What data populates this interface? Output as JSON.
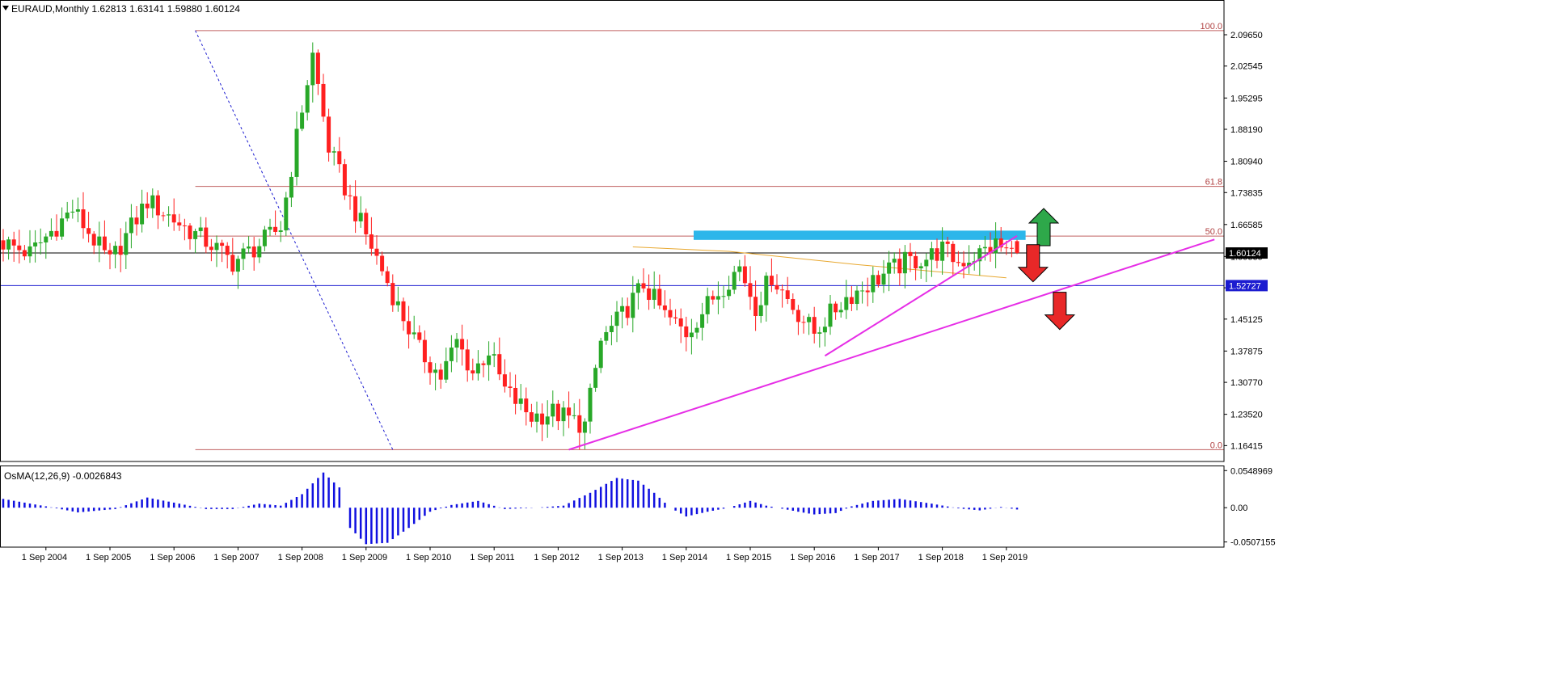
{
  "header": {
    "title": "EURAUD,Monthly  1.62813 1.63141 1.59880 1.60124",
    "osma_label": "OsMA(12,26,9) -0.0026843"
  },
  "colors": {
    "bull": "#28a828",
    "bear": "#ff2020",
    "fib_line": "#c06060",
    "fib_text": "#b04040",
    "trend": "#e62ee6",
    "resistance_box": "#2cb6ea",
    "support_line": "#1c1cd0",
    "price_line": "#000000",
    "ma": "#e8a830",
    "osma": "#1010e0",
    "axis": "#000000",
    "arrow_up": "#2ea84a",
    "arrow_down": "#e82828"
  },
  "chart_data": [
    {
      "type": "candlestick",
      "title": "EURAUD,Monthly  1.62813 1.63141 1.59880 1.60124",
      "ylim": [
        1.13,
        2.135
      ],
      "y_ticks": [
        "2.09650",
        "2.02545",
        "1.95295",
        "1.88190",
        "1.80940",
        "1.73835",
        "1.66585",
        "1.59335",
        "1.52230",
        "1.45125",
        "1.37875",
        "1.30770",
        "1.23520",
        "1.16415"
      ],
      "x_ticks": [
        "1 Sep 2004",
        "1 Sep 2005",
        "1 Sep 2006",
        "1 Sep 2007",
        "1 Sep 2008",
        "1 Sep 2009",
        "1 Sep 2010",
        "1 Sep 2011",
        "1 Sep 2012",
        "1 Sep 2013",
        "1 Sep 2014",
        "1 Sep 2015",
        "1 Sep 2016",
        "1 Sep 2017",
        "1 Sep 2018",
        "1 Sep 2019"
      ],
      "x_start": "2004-01",
      "anchors": [
        [
          "2004-01",
          1.63
        ],
        [
          "2004-07",
          1.6
        ],
        [
          "2005-03",
          1.7
        ],
        [
          "2005-10",
          1.58
        ],
        [
          "2006-05",
          1.72
        ],
        [
          "2006-12",
          1.66
        ],
        [
          "2007-05",
          1.62
        ],
        [
          "2007-09",
          1.58
        ],
        [
          "2008-02",
          1.62
        ],
        [
          "2008-06",
          1.66
        ],
        [
          "2008-10",
          1.93
        ],
        [
          "2008-12",
          2.05
        ],
        [
          "2009-03",
          1.84
        ],
        [
          "2009-07",
          1.72
        ],
        [
          "2009-12",
          1.59
        ],
        [
          "2010-04",
          1.48
        ],
        [
          "2010-08",
          1.38
        ],
        [
          "2010-12",
          1.32
        ],
        [
          "2011-03",
          1.4
        ],
        [
          "2011-06",
          1.33
        ],
        [
          "2011-09",
          1.38
        ],
        [
          "2011-12",
          1.29
        ],
        [
          "2012-05",
          1.23
        ],
        [
          "2012-09",
          1.24
        ],
        [
          "2013-03",
          1.21
        ],
        [
          "2013-06",
          1.4
        ],
        [
          "2013-10",
          1.46
        ],
        [
          "2014-02",
          1.53
        ],
        [
          "2014-06",
          1.46
        ],
        [
          "2014-10",
          1.42
        ],
        [
          "2015-03",
          1.5
        ],
        [
          "2015-08",
          1.57
        ],
        [
          "2015-11",
          1.48
        ],
        [
          "2016-02",
          1.55
        ],
        [
          "2016-06",
          1.48
        ],
        [
          "2016-10",
          1.42
        ],
        [
          "2016-12",
          1.45
        ],
        [
          "2017-04",
          1.5
        ],
        [
          "2017-08",
          1.53
        ],
        [
          "2017-12",
          1.56
        ],
        [
          "2018-03",
          1.58
        ],
        [
          "2018-07",
          1.59
        ],
        [
          "2018-10",
          1.61
        ],
        [
          "2019-01",
          1.58
        ],
        [
          "2019-05",
          1.6
        ],
        [
          "2019-08",
          1.62
        ],
        [
          "2019-11",
          1.6
        ]
      ],
      "last": {
        "open": 1.62813,
        "high": 1.63141,
        "low": 1.5988,
        "close": 1.60124
      },
      "fibonacci": [
        {
          "label": "100.0",
          "value": 2.106
        },
        {
          "label": "61.8",
          "value": 1.7525
        },
        {
          "label": "50.0",
          "value": 1.6395
        },
        {
          "label": "0.0",
          "value": 1.155
        }
      ],
      "fib_start": "2007-01",
      "fib_end": "2022-09",
      "price_labels": [
        {
          "label": "1.60124",
          "value": 1.60124
        },
        {
          "label": "1.52727",
          "value": 1.52727
        }
      ],
      "resistance_zone": {
        "from": "2014-11",
        "to": "2019-12",
        "low": 1.631,
        "high": 1.652
      },
      "trendlines": [
        {
          "from": [
            "2012-11",
            1.155
          ],
          "to": [
            "2022-12",
            1.632
          ]
        },
        {
          "from": [
            "2016-11",
            1.368
          ],
          "to": [
            "2019-11",
            1.64
          ]
        }
      ],
      "dotted_line": {
        "from": [
          "2007-01",
          2.106
        ],
        "to": [
          "2010-02",
          1.155
        ]
      },
      "ma_line": [
        [
          "2013-11",
          1.615
        ],
        [
          "2015-05",
          1.605
        ],
        [
          "2017-05",
          1.575
        ],
        [
          "2019-09",
          1.545
        ]
      ],
      "arrows": [
        {
          "dir": "up",
          "at": "2020-04",
          "value": 1.66
        },
        {
          "dir": "down",
          "at": "2020-02",
          "value": 1.578
        },
        {
          "dir": "down",
          "at": "2020-07",
          "value": 1.47
        }
      ]
    },
    {
      "type": "bar",
      "name": "OsMA(12,26,9) -0.0026843",
      "y_ticks": [
        "0.0548969",
        "0.00",
        "-0.0507155"
      ],
      "ylim": [
        -0.056,
        0.06
      ],
      "anchors": [
        [
          "2004-01",
          0.013
        ],
        [
          "2004-09",
          0.002
        ],
        [
          "2005-03",
          -0.007
        ],
        [
          "2005-10",
          -0.002
        ],
        [
          "2006-04",
          0.015
        ],
        [
          "2006-10",
          0.006
        ],
        [
          "2007-03",
          -0.002
        ],
        [
          "2007-08",
          -0.002
        ],
        [
          "2008-01",
          0.006
        ],
        [
          "2008-05",
          0.003
        ],
        [
          "2008-09",
          0.02
        ],
        [
          "2009-01",
          0.052
        ],
        [
          "2009-04",
          0.03
        ],
        [
          "2009-06",
          -0.03
        ],
        [
          "2009-09",
          -0.054
        ],
        [
          "2010-01",
          -0.052
        ],
        [
          "2010-05",
          -0.03
        ],
        [
          "2010-09",
          -0.006
        ],
        [
          "2011-01",
          0.004
        ],
        [
          "2011-06",
          0.01
        ],
        [
          "2011-11",
          -0.002
        ],
        [
          "2012-05",
          0.0
        ],
        [
          "2012-10",
          0.003
        ],
        [
          "2013-03",
          0.022
        ],
        [
          "2013-08",
          0.044
        ],
        [
          "2013-12",
          0.04
        ],
        [
          "2014-03",
          0.022
        ],
        [
          "2014-06",
          0.0
        ],
        [
          "2014-09",
          -0.013
        ],
        [
          "2015-01",
          -0.006
        ],
        [
          "2015-05",
          0.0
        ],
        [
          "2015-09",
          0.01
        ],
        [
          "2015-12",
          0.003
        ],
        [
          "2016-06",
          -0.006
        ],
        [
          "2016-09",
          -0.01
        ],
        [
          "2017-01",
          -0.008
        ],
        [
          "2017-04",
          0.002
        ],
        [
          "2017-08",
          0.01
        ],
        [
          "2018-01",
          0.013
        ],
        [
          "2018-07",
          0.006
        ],
        [
          "2018-12",
          -0.001
        ],
        [
          "2019-04",
          -0.004
        ],
        [
          "2019-08",
          0.001
        ],
        [
          "2019-11",
          -0.0027
        ]
      ]
    }
  ]
}
